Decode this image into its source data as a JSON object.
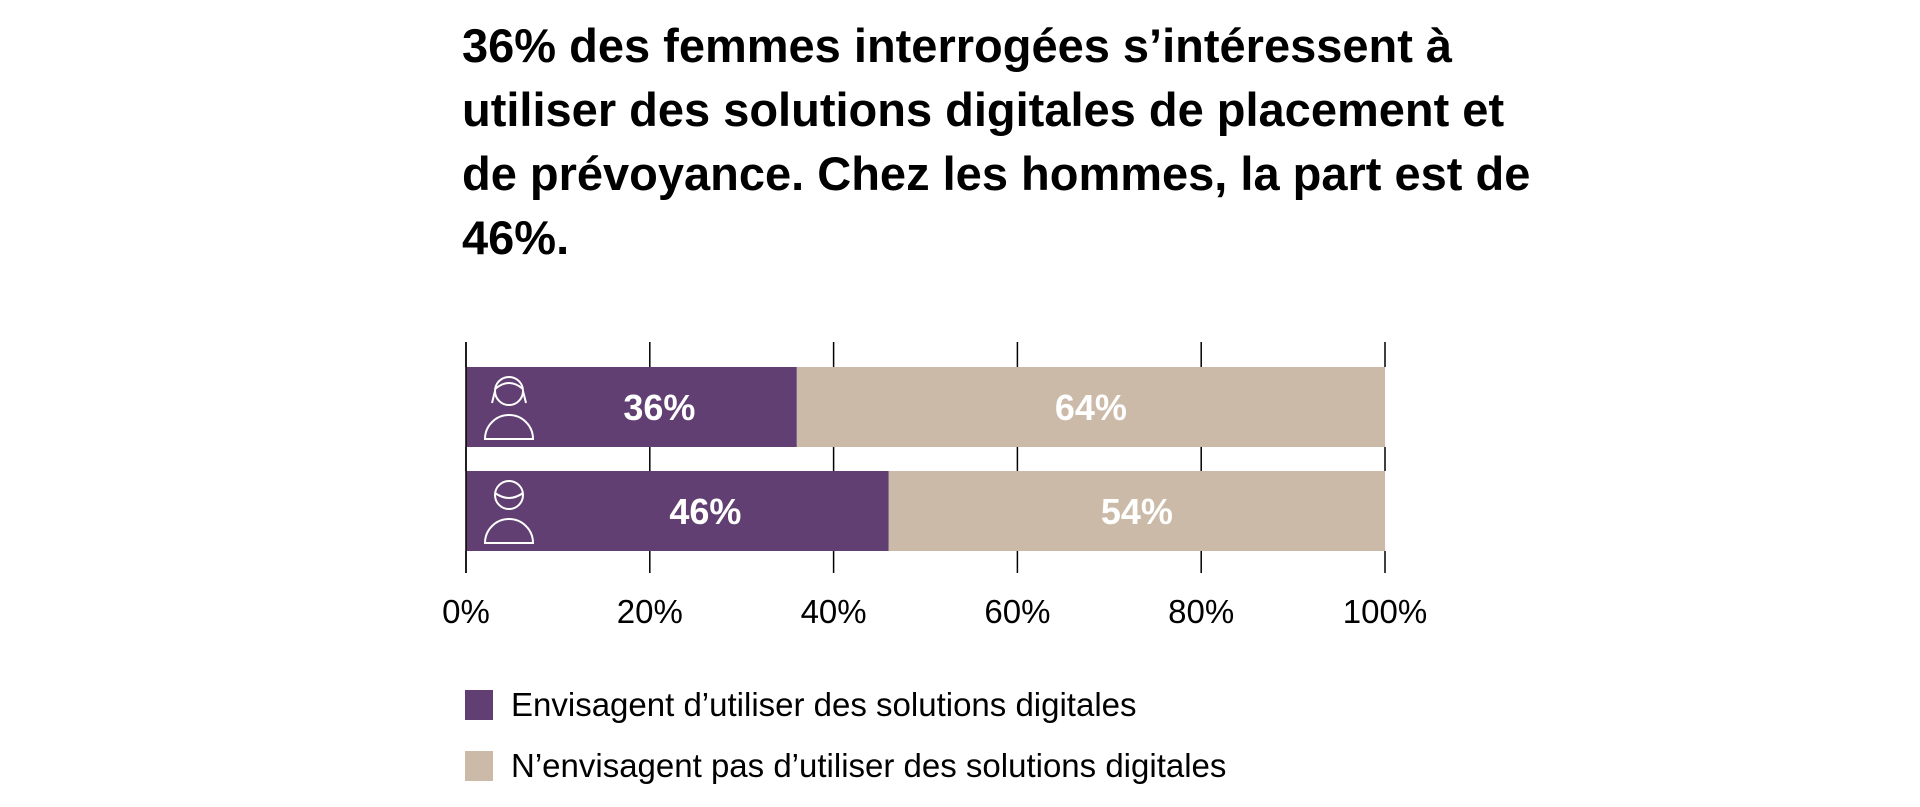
{
  "title": "36% des femmes interrogées s’intéressent à utiliser des solutions digitales de placement et de prévoyance. Chez les hommes, la part est de 46%.",
  "chart_data": {
    "type": "bar",
    "orientation": "horizontal",
    "stacked": true,
    "categories": [
      "femmes",
      "hommes"
    ],
    "category_icons": [
      "woman-icon",
      "man-icon"
    ],
    "series": [
      {
        "name": "Envisagent d’utiliser des solutions digitales",
        "values": [
          36,
          46
        ],
        "labels": [
          "36%",
          "46%"
        ],
        "color": "#623f72"
      },
      {
        "name": "N’envisagent pas d’utiliser des solutions digitales",
        "values": [
          64,
          54
        ],
        "labels": [
          "64%",
          "54%"
        ],
        "color": "#cbbaa8"
      }
    ],
    "xlim": [
      0,
      100
    ],
    "xticks": [
      0,
      20,
      40,
      60,
      80,
      100
    ],
    "xtick_labels": [
      "0%",
      "20%",
      "40%",
      "60%",
      "80%",
      "100%"
    ],
    "grid": true,
    "legend_placement": "bottom-left"
  }
}
